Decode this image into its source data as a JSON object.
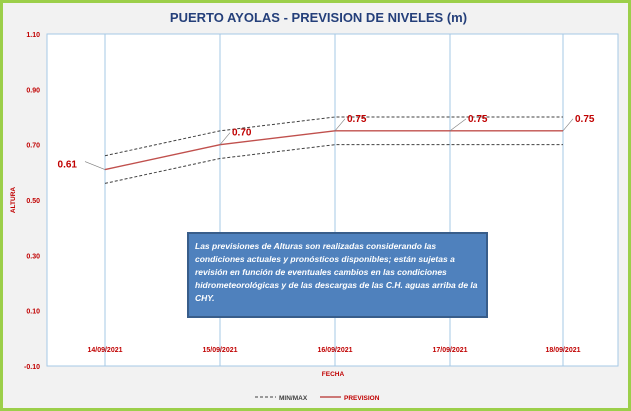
{
  "colors": {
    "border": "#9ccf4a",
    "background": "#f2f2f2",
    "title": "#243f7a",
    "axis_text": "#c00000",
    "grid": "#a6c8e6",
    "forecast": "#c0504d",
    "minmax": "#404040",
    "note_bg": "#4f81bd"
  },
  "chart_data": {
    "type": "line",
    "title": "PUERTO AYOLAS - PREVISION DE NIVELES (m)",
    "xlabel": "FECHA",
    "ylabel": "ALTURA",
    "categories": [
      "14/09/2021",
      "15/09/2021",
      "16/09/2021",
      "17/09/2021",
      "18/09/2021"
    ],
    "ylim": [
      -0.1,
      1.1
    ],
    "yticks": [
      "1.10",
      "0.90",
      "0.70",
      "0.50",
      "0.30",
      "0.10",
      "-0.10"
    ],
    "grid": "vertical",
    "legend_position": "bottom",
    "series": [
      {
        "name": "PREVISION",
        "values": [
          0.61,
          0.7,
          0.75,
          0.75,
          0.75
        ],
        "labels": [
          "0.61",
          "0.70",
          "0.75",
          "0.75",
          "0.75"
        ],
        "color": "#c0504d",
        "style": "solid"
      },
      {
        "name": "MIN/MAX",
        "role": "max",
        "values": [
          0.66,
          0.75,
          0.8,
          0.8,
          0.8
        ],
        "color": "#404040",
        "style": "dashed"
      },
      {
        "name": "MIN/MAX",
        "role": "min",
        "values": [
          0.56,
          0.65,
          0.7,
          0.7,
          0.7
        ],
        "color": "#404040",
        "style": "dashed"
      }
    ]
  },
  "note": "Las previsiones de Alturas son realizadas considerando las condiciones actuales y pronósticos disponibles; están sujetas a revisión en función de eventuales cambios en las condiciones hidrometeorológicas y de las descargas de las C.H. aguas arriba de la CHY.",
  "legend": {
    "minmax_label": "MIN/MAX",
    "forecast_label": "PREVISION"
  }
}
